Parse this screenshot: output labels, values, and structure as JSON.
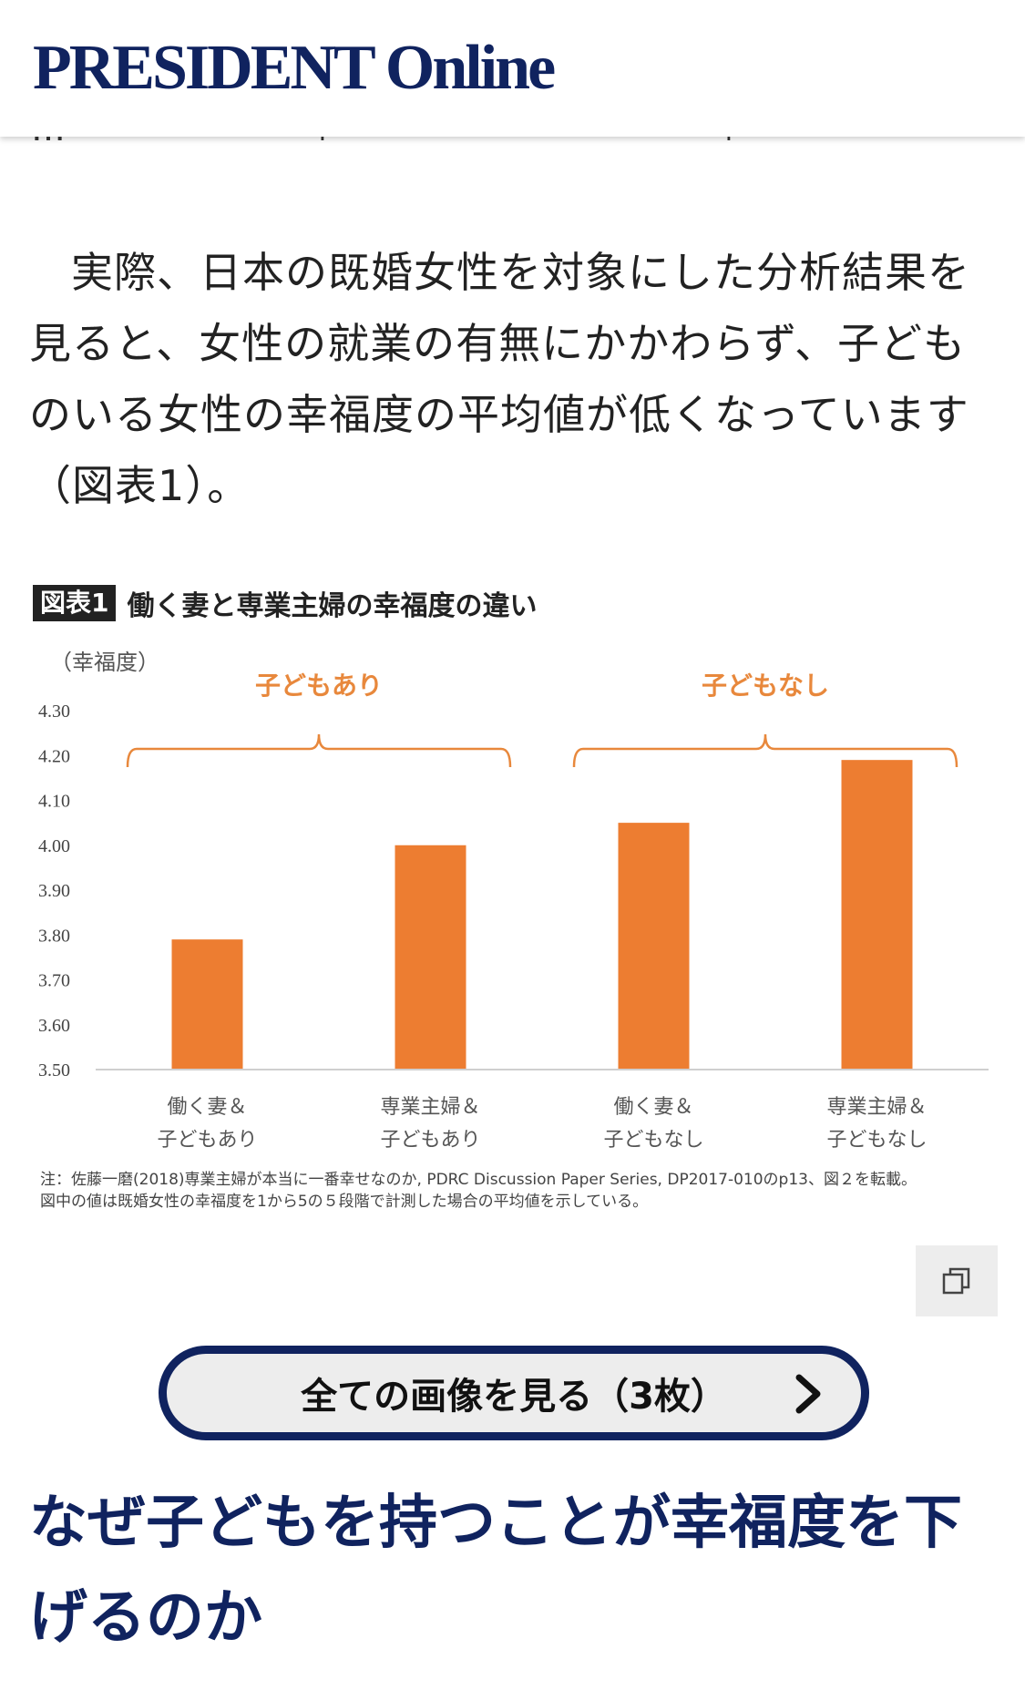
{
  "header": {
    "logo_text": "PRESIDENT Online"
  },
  "article": {
    "cut_off_line": "…「　　　　　」　　　　「　　　　　」",
    "paragraph": "実際、日本の既婚女性を対象にした分析結果を見ると、女性の就業の有無にかかわらず、子どものいる女性の幸福度の平均値が低くなっています（図表1）。"
  },
  "figure": {
    "badge": "図表1",
    "title": "働く妻と専業主婦の幸福度の違い",
    "note_line1": "注：佐藤一磨(2018)専業主婦が本当に一番幸せなのか, PDRC Discussion Paper Series, DP2017-010のp13、図２を転載。",
    "note_line2": "図中の値は既婚女性の幸福度を1から5の５段階で計測した場合の平均値を示している。",
    "copy_icon": "copy-icon"
  },
  "chart_data": {
    "type": "bar",
    "ylabel": "（幸福度）",
    "ylim": [
      3.5,
      4.3
    ],
    "yticks": [
      "4.30",
      "4.20",
      "4.10",
      "4.00",
      "3.90",
      "3.80",
      "3.70",
      "3.60",
      "3.50"
    ],
    "categories": [
      [
        "働く妻＆",
        "子どもあり"
      ],
      [
        "専業主婦＆",
        "子どもあり"
      ],
      [
        "働く妻＆",
        "子どもなし"
      ],
      [
        "専業主婦＆",
        "子どもなし"
      ]
    ],
    "values": [
      3.79,
      4.0,
      4.05,
      4.19
    ],
    "groups": [
      {
        "label": "子どもあり",
        "start": 0,
        "end": 1
      },
      {
        "label": "子どもなし",
        "start": 2,
        "end": 3
      }
    ],
    "bar_color": "#ed7d31",
    "group_color": "#e8883c",
    "grid": false
  },
  "buttons": {
    "view_all_label": "全ての画像を見る（3枚）",
    "view_all_icon": "chevron-right-icon"
  },
  "section": {
    "heading": "なぜ子どもを持つことが幸福度を下げるのか"
  }
}
